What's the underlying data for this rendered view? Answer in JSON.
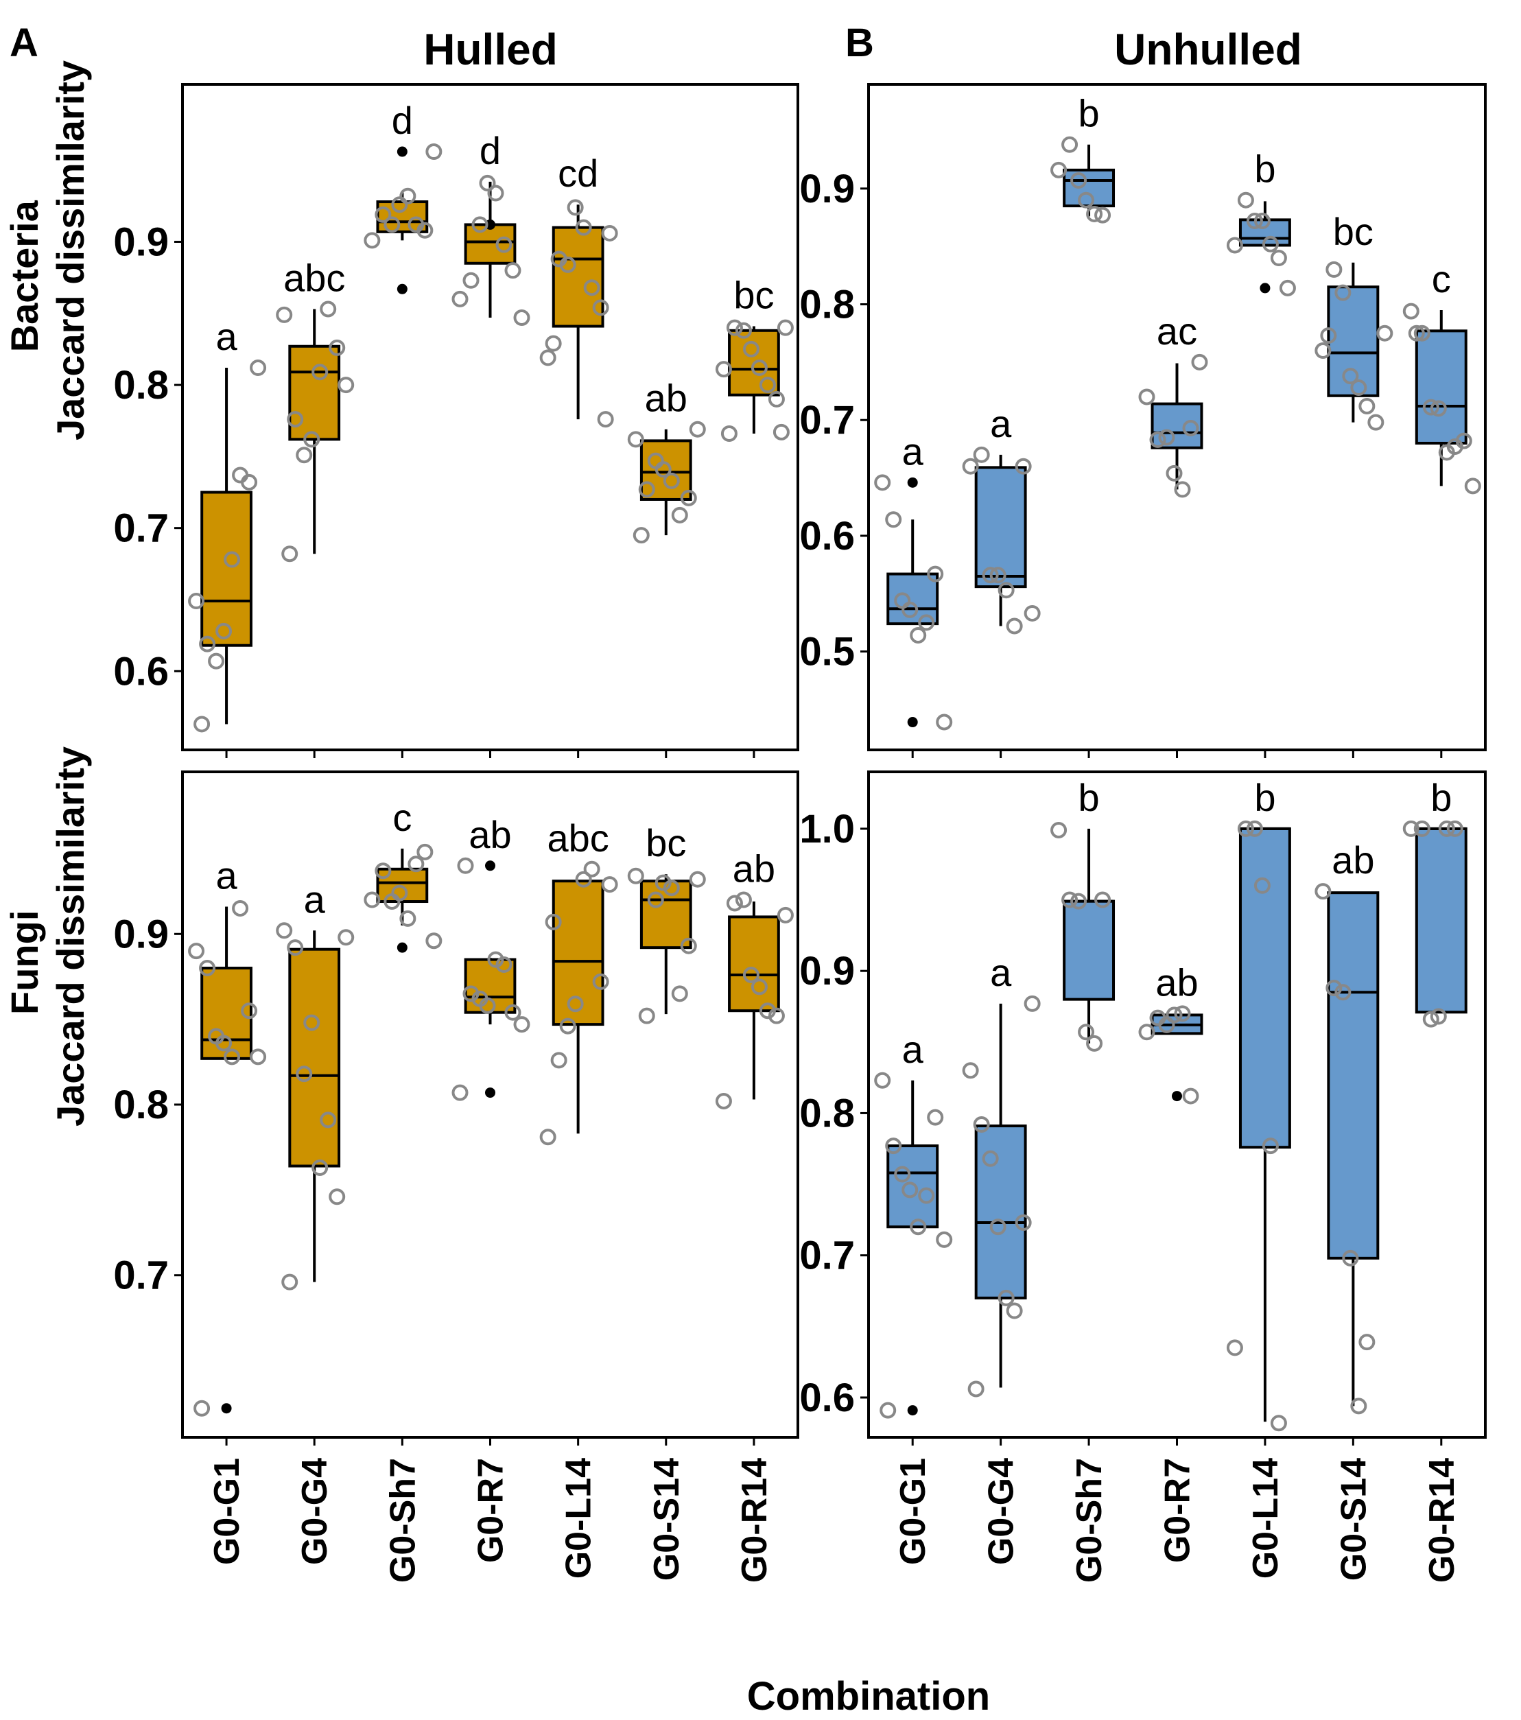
{
  "figure": {
    "panel_labels": [
      "A",
      "B"
    ],
    "col_titles": [
      "Hulled",
      "Unhulled"
    ],
    "row_labels": [
      [
        "Bacteria",
        "Jaccard dissimilarity"
      ],
      [
        "Fungi",
        "Jaccard dissimilarity"
      ]
    ],
    "x_title": "Combination"
  },
  "colors": {
    "hulled": "#cc9200",
    "unhulled": "#6699cc",
    "point": "#888888",
    "outlier": "#000000"
  },
  "chart_data": [
    {
      "type": "box",
      "id": "hulled-bacteria",
      "title": "Hulled",
      "ylabel": "Bacteria Jaccard dissimilarity",
      "xlabel": "Combination",
      "ylim": [
        0.545,
        1.01
      ],
      "yticks": [
        0.6,
        0.7,
        0.8,
        0.9
      ],
      "ytick_labels": [
        "0.6",
        "0.7",
        "0.8",
        "0.9"
      ],
      "categories": [
        "G0-G1",
        "G0-G4",
        "G0-Sh7",
        "G0-R7",
        "G0-L14",
        "G0-S14",
        "G0-R14"
      ],
      "boxes": [
        {
          "letter": "a",
          "q1": 0.618,
          "median": 0.649,
          "q3": 0.725,
          "whisker_low": 0.563,
          "whisker_high": 0.812,
          "outliers": [],
          "points": [
            0.649,
            0.619,
            0.607,
            0.628,
            0.678,
            0.737,
            0.732,
            0.812,
            0.563
          ]
        },
        {
          "letter": "abc",
          "q1": 0.762,
          "median": 0.809,
          "q3": 0.827,
          "whisker_low": 0.682,
          "whisker_high": 0.853,
          "outliers": [],
          "points": [
            0.849,
            0.776,
            0.751,
            0.762,
            0.809,
            0.853,
            0.826,
            0.8,
            0.682
          ]
        },
        {
          "letter": "d",
          "q1": 0.907,
          "median": 0.914,
          "q3": 0.928,
          "whisker_low": 0.901,
          "whisker_high": 0.935,
          "outliers": [
            0.963,
            0.867
          ],
          "points": [
            0.901,
            0.919,
            0.912,
            0.926,
            0.932,
            0.912,
            0.908,
            0.963
          ]
        },
        {
          "letter": "d",
          "q1": 0.885,
          "median": 0.9,
          "q3": 0.912,
          "whisker_low": 0.847,
          "whisker_high": 0.942,
          "outliers": [
            0.912
          ],
          "points": [
            0.86,
            0.873,
            0.912,
            0.941,
            0.934,
            0.898,
            0.88,
            0.847
          ]
        },
        {
          "letter": "cd",
          "q1": 0.841,
          "median": 0.888,
          "q3": 0.91,
          "whisker_low": 0.776,
          "whisker_high": 0.926,
          "outliers": [],
          "points": [
            0.819,
            0.888,
            0.884,
            0.924,
            0.91,
            0.868,
            0.854,
            0.906,
            0.829,
            0.776
          ]
        },
        {
          "letter": "ab",
          "q1": 0.72,
          "median": 0.739,
          "q3": 0.761,
          "whisker_low": 0.695,
          "whisker_high": 0.769,
          "outliers": [],
          "points": [
            0.762,
            0.727,
            0.747,
            0.741,
            0.733,
            0.709,
            0.721,
            0.769,
            0.695
          ]
        },
        {
          "letter": "bc",
          "q1": 0.793,
          "median": 0.811,
          "q3": 0.838,
          "whisker_low": 0.766,
          "whisker_high": 0.841,
          "outliers": [],
          "points": [
            0.811,
            0.84,
            0.838,
            0.825,
            0.812,
            0.8,
            0.79,
            0.84,
            0.766,
            0.767
          ]
        }
      ]
    },
    {
      "type": "box",
      "id": "unhulled-bacteria",
      "title": "Unhulled",
      "ylabel": "Bacteria Jaccard dissimilarity",
      "xlabel": "Combination",
      "ylim": [
        0.415,
        0.99
      ],
      "yticks": [
        0.5,
        0.6,
        0.7,
        0.8,
        0.9
      ],
      "ytick_labels": [
        "0.5",
        "0.6",
        "0.7",
        "0.8",
        "0.9"
      ],
      "categories": [
        "G0-G1",
        "G0-G4",
        "G0-Sh7",
        "G0-R7",
        "G0-L14",
        "G0-S14",
        "G0-R14"
      ],
      "boxes": [
        {
          "letter": "a",
          "q1": 0.524,
          "median": 0.537,
          "q3": 0.567,
          "whisker_low": 0.524,
          "whisker_high": 0.614,
          "outliers": [
            0.646,
            0.439
          ],
          "points": [
            0.646,
            0.614,
            0.544,
            0.536,
            0.514,
            0.525,
            0.567,
            0.439
          ]
        },
        {
          "letter": "a",
          "q1": 0.556,
          "median": 0.565,
          "q3": 0.659,
          "whisker_low": 0.522,
          "whisker_high": 0.67,
          "outliers": [],
          "points": [
            0.66,
            0.67,
            0.566,
            0.566,
            0.553,
            0.522,
            0.66,
            0.533
          ]
        },
        {
          "letter": "b",
          "q1": 0.885,
          "median": 0.907,
          "q3": 0.916,
          "whisker_low": 0.876,
          "whisker_high": 0.938,
          "outliers": [],
          "points": [
            0.916,
            0.938,
            0.907,
            0.89,
            0.878,
            0.877
          ]
        },
        {
          "letter": "ac",
          "q1": 0.676,
          "median": 0.689,
          "q3": 0.714,
          "whisker_low": 0.64,
          "whisker_high": 0.749,
          "outliers": [],
          "points": [
            0.72,
            0.683,
            0.685,
            0.654,
            0.64,
            0.693,
            0.75
          ]
        },
        {
          "letter": "b",
          "q1": 0.851,
          "median": 0.857,
          "q3": 0.873,
          "whisker_low": 0.851,
          "whisker_high": 0.889,
          "outliers": [
            0.814
          ],
          "points": [
            0.851,
            0.89,
            0.872,
            0.872,
            0.852,
            0.84,
            0.814
          ]
        },
        {
          "letter": "bc",
          "q1": 0.721,
          "median": 0.758,
          "q3": 0.815,
          "whisker_low": 0.698,
          "whisker_high": 0.836,
          "outliers": [],
          "points": [
            0.76,
            0.83,
            0.81,
            0.738,
            0.728,
            0.712,
            0.698,
            0.775,
            0.773
          ]
        },
        {
          "letter": "c",
          "q1": 0.68,
          "median": 0.712,
          "q3": 0.777,
          "whisker_low": 0.643,
          "whisker_high": 0.795,
          "outliers": [],
          "points": [
            0.794,
            0.775,
            0.711,
            0.71,
            0.672,
            0.677,
            0.682,
            0.643,
            0.775
          ]
        }
      ]
    },
    {
      "type": "box",
      "id": "hulled-fungi",
      "title": "Hulled",
      "ylabel": "Fungi Jaccard dissimilarity",
      "xlabel": "Combination",
      "ylim": [
        0.605,
        0.995
      ],
      "yticks": [
        0.7,
        0.8,
        0.9
      ],
      "ytick_labels": [
        "0.7",
        "0.8",
        "0.9"
      ],
      "categories": [
        "G0-G1",
        "G0-G4",
        "G0-Sh7",
        "G0-R7",
        "G0-L14",
        "G0-S14",
        "G0-R14"
      ],
      "boxes": [
        {
          "letter": "a",
          "q1": 0.827,
          "median": 0.838,
          "q3": 0.88,
          "whisker_low": 0.827,
          "whisker_high": 0.916,
          "outliers": [
            0.622
          ],
          "points": [
            0.89,
            0.88,
            0.84,
            0.836,
            0.828,
            0.915,
            0.855,
            0.828,
            0.622
          ]
        },
        {
          "letter": "a",
          "q1": 0.764,
          "median": 0.817,
          "q3": 0.891,
          "whisker_low": 0.696,
          "whisker_high": 0.902,
          "outliers": [],
          "points": [
            0.902,
            0.892,
            0.818,
            0.848,
            0.763,
            0.791,
            0.746,
            0.898,
            0.696
          ]
        },
        {
          "letter": "c",
          "q1": 0.919,
          "median": 0.93,
          "q3": 0.938,
          "whisker_low": 0.905,
          "whisker_high": 0.95,
          "outliers": [
            0.892
          ],
          "points": [
            0.92,
            0.937,
            0.919,
            0.924,
            0.909,
            0.941,
            0.948,
            0.896
          ]
        },
        {
          "letter": "ab",
          "q1": 0.854,
          "median": 0.863,
          "q3": 0.885,
          "whisker_low": 0.847,
          "whisker_high": 0.886,
          "outliers": [
            0.94,
            0.807
          ],
          "points": [
            0.807,
            0.865,
            0.862,
            0.858,
            0.885,
            0.882,
            0.854,
            0.847,
            0.94
          ]
        },
        {
          "letter": "abc",
          "q1": 0.847,
          "median": 0.884,
          "q3": 0.931,
          "whisker_low": 0.783,
          "whisker_high": 0.931,
          "outliers": [],
          "points": [
            0.781,
            0.826,
            0.846,
            0.859,
            0.932,
            0.938,
            0.872,
            0.929,
            0.907
          ]
        },
        {
          "letter": "bc",
          "q1": 0.892,
          "median": 0.92,
          "q3": 0.931,
          "whisker_low": 0.853,
          "whisker_high": 0.935,
          "outliers": [],
          "points": [
            0.934,
            0.852,
            0.92,
            0.93,
            0.927,
            0.865,
            0.893,
            0.932
          ]
        },
        {
          "letter": "ab",
          "q1": 0.855,
          "median": 0.876,
          "q3": 0.91,
          "whisker_low": 0.803,
          "whisker_high": 0.919,
          "outliers": [],
          "points": [
            0.802,
            0.918,
            0.92,
            0.876,
            0.869,
            0.855,
            0.852,
            0.911
          ]
        }
      ]
    },
    {
      "type": "box",
      "id": "unhulled-fungi",
      "title": "Unhulled",
      "ylabel": "Fungi Jaccard dissimilarity",
      "xlabel": "Combination",
      "ylim": [
        0.572,
        1.04
      ],
      "yticks": [
        0.6,
        0.7,
        0.8,
        0.9,
        1.0
      ],
      "ytick_labels": [
        "0.6",
        "0.7",
        "0.8",
        "0.9",
        "1.0"
      ],
      "categories": [
        "G0-G1",
        "G0-G4",
        "G0-Sh7",
        "G0-R7",
        "G0-L14",
        "G0-S14",
        "G0-R14"
      ],
      "boxes": [
        {
          "letter": "a",
          "q1": 0.72,
          "median": 0.758,
          "q3": 0.777,
          "whisker_low": 0.72,
          "whisker_high": 0.823,
          "outliers": [
            0.591
          ],
          "points": [
            0.823,
            0.777,
            0.757,
            0.746,
            0.72,
            0.742,
            0.797,
            0.711,
            0.591
          ]
        },
        {
          "letter": "a",
          "q1": 0.67,
          "median": 0.723,
          "q3": 0.791,
          "whisker_low": 0.607,
          "whisker_high": 0.877,
          "outliers": [],
          "points": [
            0.83,
            0.792,
            0.768,
            0.72,
            0.67,
            0.661,
            0.723,
            0.877,
            0.606
          ]
        },
        {
          "letter": "b",
          "q1": 0.88,
          "median": 0.949,
          "q3": 0.949,
          "whisker_low": 0.849,
          "whisker_high": 1.0,
          "outliers": [],
          "points": [
            0.999,
            0.95,
            0.949,
            0.857,
            0.849,
            0.95
          ]
        },
        {
          "letter": "ab",
          "q1": 0.856,
          "median": 0.862,
          "q3": 0.869,
          "whisker_low": 0.856,
          "whisker_high": 0.869,
          "outliers": [
            0.812
          ],
          "points": [
            0.857,
            0.867,
            0.862,
            0.869,
            0.87,
            0.812
          ]
        },
        {
          "letter": "b",
          "q1": 0.776,
          "median": 1.0,
          "q3": 1.0,
          "whisker_low": 0.583,
          "whisker_high": 1.0,
          "outliers": [],
          "points": [
            0.635,
            1.0,
            1.0,
            0.96,
            0.777,
            0.582
          ]
        },
        {
          "letter": "ab",
          "q1": 0.698,
          "median": 0.885,
          "q3": 0.955,
          "whisker_low": 0.594,
          "whisker_high": 0.955,
          "outliers": [],
          "points": [
            0.956,
            0.888,
            0.885,
            0.698,
            0.594,
            0.639
          ]
        },
        {
          "letter": "b",
          "q1": 0.871,
          "median": 1.0,
          "q3": 1.0,
          "whisker_low": 0.871,
          "whisker_high": 1.0,
          "outliers": [],
          "points": [
            1.0,
            1.0,
            0.866,
            0.868,
            1.0,
            1.0
          ]
        }
      ]
    }
  ]
}
